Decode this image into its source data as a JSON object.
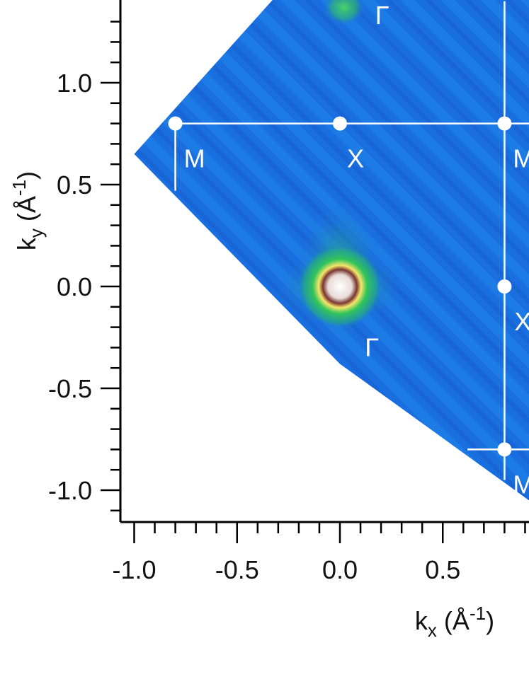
{
  "chart_data": {
    "type": "heatmap",
    "title": "",
    "xlabel": {
      "base": "k",
      "sub": "x",
      "open": " (Å",
      "sup": "-1",
      "close": ")"
    },
    "ylabel": {
      "base": "k",
      "sub": "y",
      "open": " (Å",
      "sup": "-1",
      "close": ")"
    },
    "xlim": [
      -1.05,
      0.92
    ],
    "ylim": [
      -1.12,
      1.38
    ],
    "x_ticks": [
      -1.0,
      -0.5,
      0.0,
      0.5
    ],
    "x_tick_labels": [
      "-1.0",
      "-0.5",
      "0.0",
      "0.5"
    ],
    "y_ticks": [
      -1.0,
      -0.5,
      0.0,
      0.5,
      1.0
    ],
    "y_tick_labels": [
      "-1.0",
      "-0.5",
      "0.0",
      "0.5",
      "1.0"
    ],
    "minor_tick_step": 0.1,
    "colors": {
      "background": "#1a6fe0",
      "diagonal_streak": "#1f85ea",
      "wedge_edge": "#1d84f0",
      "spot_green": "#33c45a",
      "spot_yellow": "#f5e66a",
      "spot_ring": "#7a3530",
      "spot_core": "#ffffff",
      "bz_lines": "#ffffff"
    },
    "intensity_spots": [
      {
        "kx": 0.0,
        "ky": 0.0,
        "label": "Γ",
        "strength": "strong"
      },
      {
        "kx": 0.02,
        "ky": 1.37,
        "label": "Γ",
        "strength": "weak"
      }
    ],
    "bz_lines": [
      {
        "from": [
          -0.8,
          0.8
        ],
        "to": [
          0.92,
          0.8
        ]
      },
      {
        "from": [
          0.8,
          -0.95
        ],
        "to": [
          0.8,
          1.4
        ]
      },
      {
        "from": [
          0.62,
          -0.8
        ],
        "to": [
          0.92,
          -0.8
        ]
      },
      {
        "from": [
          -0.8,
          0.8
        ],
        "to": [
          -0.8,
          0.47
        ]
      }
    ],
    "points": [
      {
        "kx": -0.8,
        "ky": 0.8,
        "label": "M"
      },
      {
        "kx": 0.0,
        "ky": 0.8,
        "label": "X"
      },
      {
        "kx": 0.8,
        "ky": 0.8,
        "label": "M"
      },
      {
        "kx": 0.8,
        "ky": 0.0,
        "label": "X"
      },
      {
        "kx": 0.8,
        "ky": -0.8,
        "label": "M"
      }
    ],
    "gamma_labels": [
      {
        "kx": 0.19,
        "ky": -0.3,
        "label": "Γ"
      },
      {
        "kx": 0.24,
        "ky": 1.33,
        "label": "Γ"
      }
    ]
  }
}
